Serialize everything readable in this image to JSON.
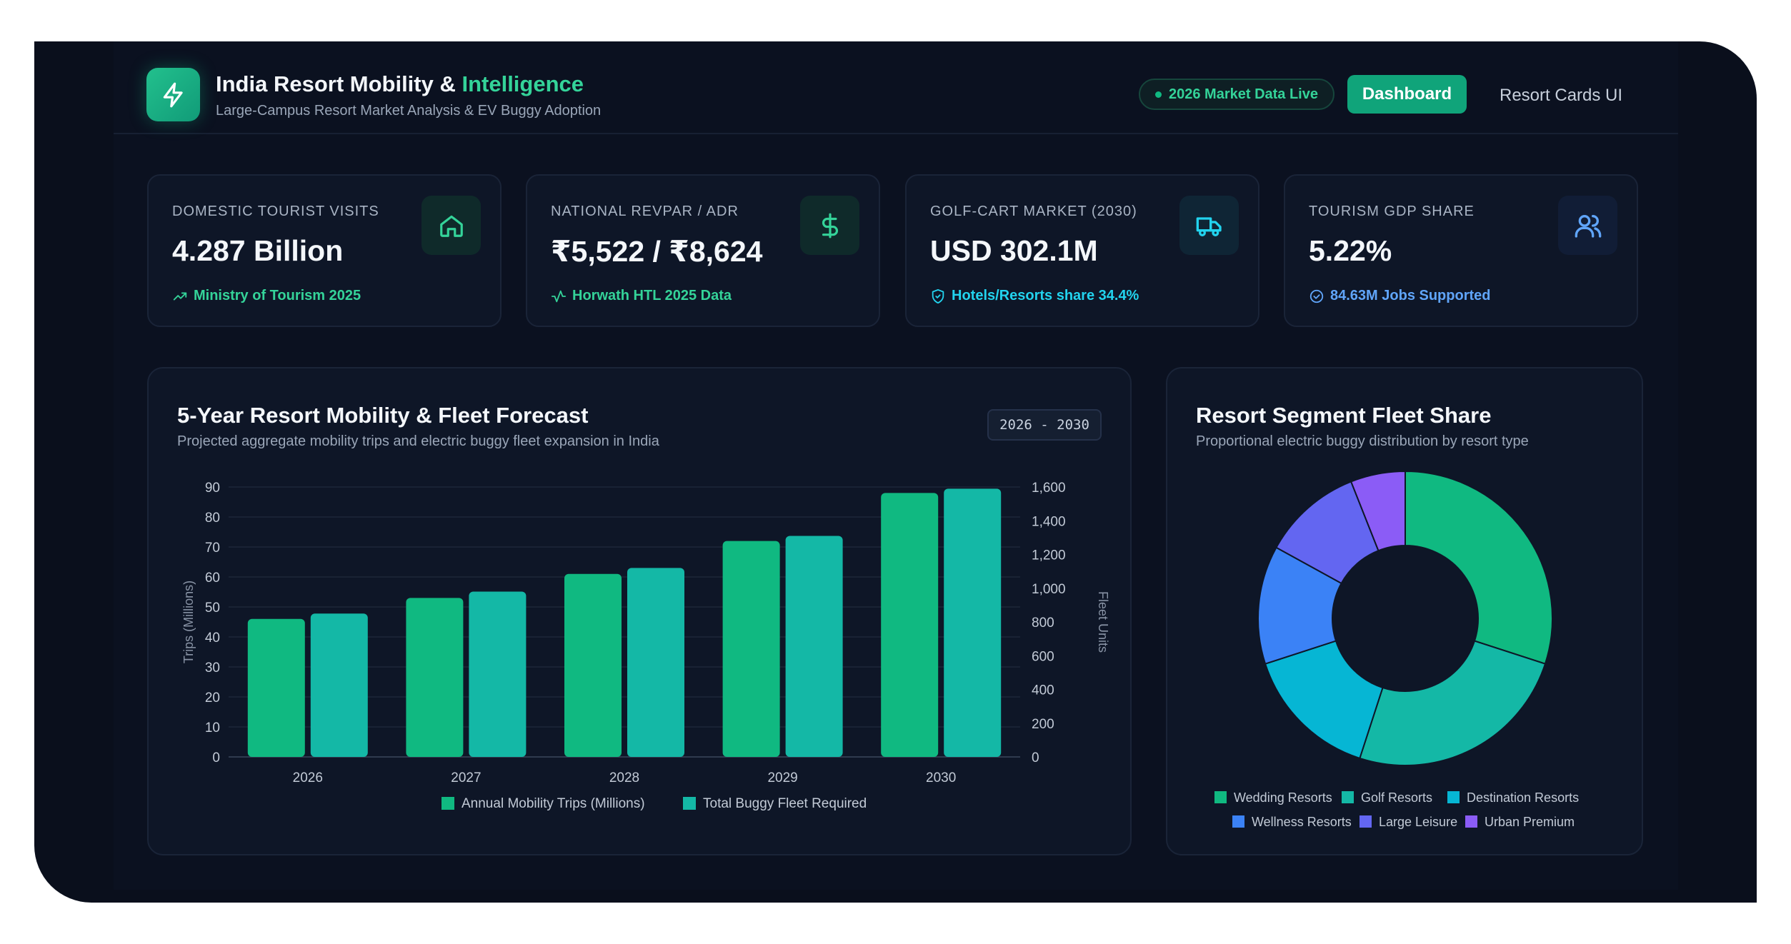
{
  "header": {
    "title_main": "India Resort Mobility & ",
    "title_accent": "Intelligence",
    "subtitle": "Large-Campus Resort Market Analysis & EV Buggy Adoption",
    "live_badge": "2026 Market Data Live",
    "nav": {
      "dashboard": "Dashboard",
      "resort_cards": "Resort Cards UI"
    }
  },
  "kpis": [
    {
      "label": "DOMESTIC TOURIST VISITS",
      "value": "4.287 Billion",
      "footnote": "Ministry of Tourism 2025",
      "icon": "home-icon",
      "accent": "#34d399"
    },
    {
      "label": "NATIONAL REVPAR / ADR",
      "value": "₹5,522 / ₹8,624",
      "footnote": "Horwath HTL 2025 Data",
      "icon": "dollar-icon",
      "accent": "#34d399"
    },
    {
      "label": "GOLF-CART MARKET (2030)",
      "value": "USD 302.1M",
      "footnote": "Hotels/Resorts share 34.4%",
      "icon": "truck-icon",
      "accent": "#22d3ee"
    },
    {
      "label": "TOURISM GDP SHARE",
      "value": "5.22%",
      "footnote": "84.63M Jobs Supported",
      "icon": "users-icon",
      "accent": "#60a5fa"
    }
  ],
  "forecast_panel": {
    "title": "5-Year Resort Mobility & Fleet Forecast",
    "subtitle": "Projected aggregate mobility trips and electric buggy fleet expansion in India",
    "range": "2026 - 2030"
  },
  "segment_panel": {
    "title": "Resort Segment Fleet Share",
    "subtitle": "Proportional electric buggy distribution by resort type"
  },
  "chart_data": [
    {
      "type": "bar",
      "categories": [
        "2026",
        "2027",
        "2028",
        "2029",
        "2030"
      ],
      "series": [
        {
          "name": "Annual Mobility Trips (Millions)",
          "axis": "left",
          "values": [
            46,
            53,
            61,
            72,
            88
          ],
          "color": "#10b981"
        },
        {
          "name": "Total Buggy Fleet Required",
          "axis": "right",
          "values": [
            850,
            980,
            1120,
            1310,
            1590
          ],
          "color": "#14b8a6"
        }
      ],
      "ylabel": "Trips (Millions)",
      "y2label": "Fleet Units",
      "ylim": [
        0,
        90
      ],
      "y2lim": [
        0,
        1600
      ],
      "yticks": [
        "0",
        "10",
        "20",
        "30",
        "40",
        "50",
        "60",
        "70",
        "80",
        "90"
      ],
      "y2ticks": [
        "0",
        "200",
        "400",
        "600",
        "800",
        "1,000",
        "1,200",
        "1,400",
        "1,600"
      ],
      "grid": true,
      "legend": "bottom"
    },
    {
      "type": "pie",
      "labels": [
        "Wedding Resorts",
        "Golf Resorts",
        "Destination Resorts",
        "Wellness Resorts",
        "Large Leisure",
        "Urban Premium"
      ],
      "values": [
        30,
        25,
        15,
        13,
        11,
        6
      ],
      "colors": [
        "#10b981",
        "#14b8a6",
        "#06b6d4",
        "#3b82f6",
        "#6366f1",
        "#8b5cf6"
      ],
      "donut": true,
      "legend": "bottom"
    }
  ]
}
